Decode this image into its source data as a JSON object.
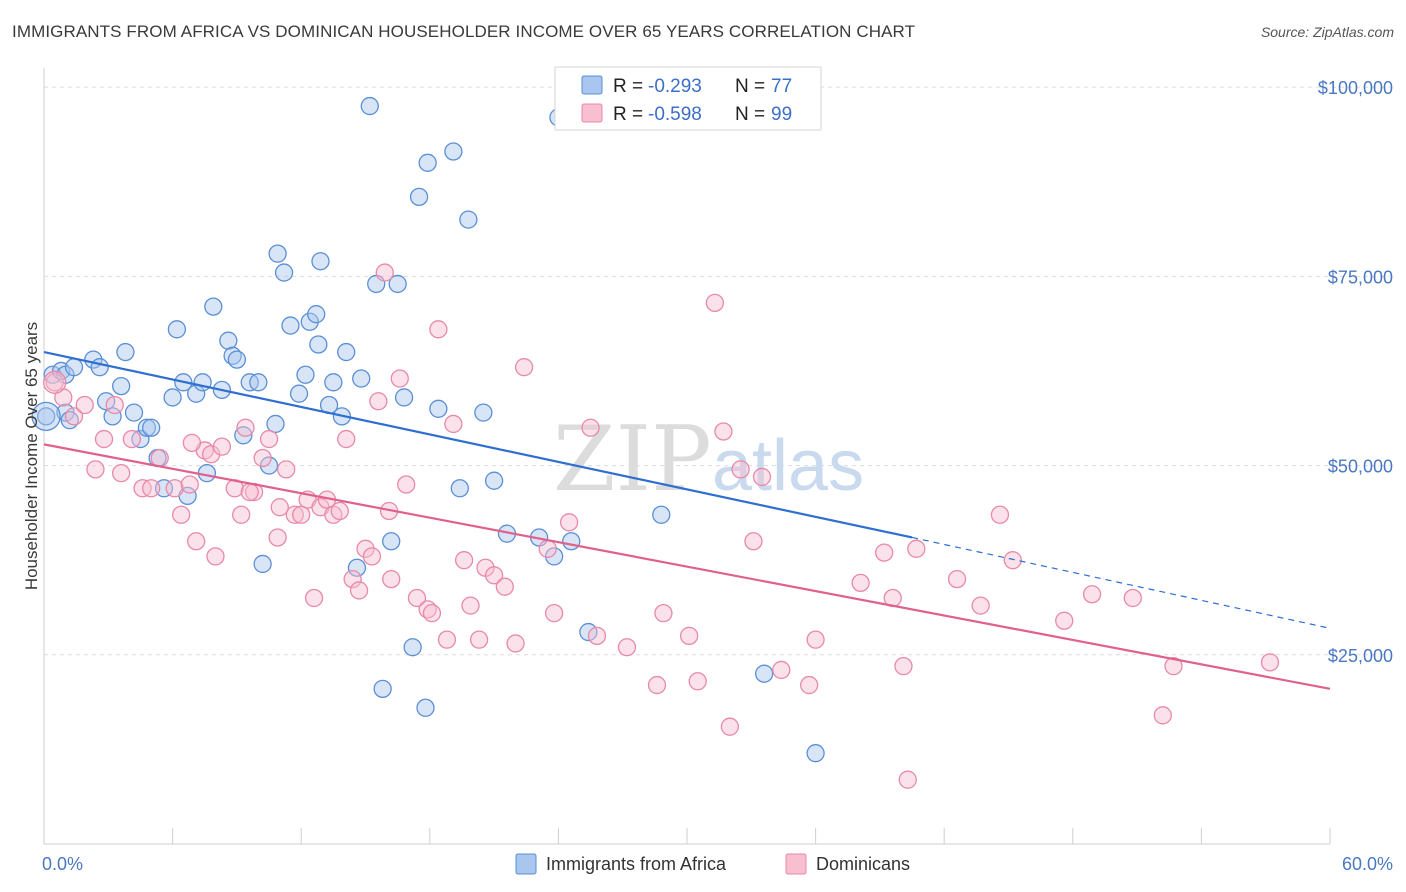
{
  "title": "IMMIGRANTS FROM AFRICA VS DOMINICAN HOUSEHOLDER INCOME OVER 65 YEARS CORRELATION CHART",
  "source": "Source: ZipAtlas.com",
  "watermark": {
    "zip": "ZIP",
    "atlas": "atlas"
  },
  "colors": {
    "blue_fill": "#a9c6ee",
    "blue_stroke": "#5b8fd6",
    "blue_line": "#2f6fcf",
    "pink_fill": "#f7bfd0",
    "pink_stroke": "#e889a9",
    "pink_line": "#e0608e",
    "grid": "#dcdcdc",
    "tick_label": "#4a78c2"
  },
  "legend": {
    "rows": [
      {
        "r_label": "R = ",
        "r_value": "-0.293",
        "n_label": "N = ",
        "n_value": "77"
      },
      {
        "r_label": "R = ",
        "r_value": "-0.598",
        "n_label": "N = ",
        "n_value": "99"
      }
    ]
  },
  "bottom_legend": [
    "Immigrants from Africa",
    "Dominicans"
  ],
  "chart_data": {
    "type": "scatter",
    "title": "IMMIGRANTS FROM AFRICA VS DOMINICAN HOUSEHOLDER INCOME OVER 65 YEARS CORRELATION CHART",
    "xlabel": "",
    "ylabel": "Householder Income Over 65 years",
    "xlim": [
      0,
      60
    ],
    "ylim": [
      0,
      102000
    ],
    "x_tick_labels": [
      "0.0%",
      "60.0%"
    ],
    "y_ticks": [
      25000,
      50000,
      75000,
      100000
    ],
    "y_tick_labels": [
      "$25,000",
      "$50,000",
      "$75,000",
      "$100,000"
    ],
    "grid": true,
    "legend_position": "top-center",
    "series": [
      {
        "name": "Immigrants from Africa",
        "r": -0.293,
        "n": 77,
        "trend": {
          "x0": 0,
          "y0": 65000,
          "x1": 40.5,
          "y1": 40500,
          "dashed_to_x": 60,
          "dashed_to_y": 28500
        },
        "points": [
          [
            0.1,
            56500
          ],
          [
            0.4,
            62000
          ],
          [
            0.8,
            62500
          ],
          [
            1.0,
            62000
          ],
          [
            1.0,
            57000
          ],
          [
            1.2,
            56000
          ],
          [
            1.4,
            63000
          ],
          [
            2.3,
            64000
          ],
          [
            2.6,
            63000
          ],
          [
            2.9,
            58500
          ],
          [
            3.2,
            56500
          ],
          [
            3.6,
            60500
          ],
          [
            3.8,
            65000
          ],
          [
            4.2,
            57000
          ],
          [
            4.5,
            53500
          ],
          [
            4.8,
            55000
          ],
          [
            5.0,
            55000
          ],
          [
            5.3,
            51000
          ],
          [
            5.6,
            47000
          ],
          [
            6.0,
            59000
          ],
          [
            6.2,
            68000
          ],
          [
            6.5,
            61000
          ],
          [
            6.7,
            46000
          ],
          [
            7.1,
            59500
          ],
          [
            7.4,
            61000
          ],
          [
            7.6,
            49000
          ],
          [
            7.9,
            71000
          ],
          [
            8.3,
            60000
          ],
          [
            8.6,
            66500
          ],
          [
            8.8,
            64500
          ],
          [
            9.0,
            64000
          ],
          [
            9.3,
            54000
          ],
          [
            9.6,
            61000
          ],
          [
            10.0,
            61000
          ],
          [
            10.2,
            37000
          ],
          [
            10.5,
            50000
          ],
          [
            10.8,
            55500
          ],
          [
            10.9,
            78000
          ],
          [
            11.2,
            75500
          ],
          [
            11.5,
            68500
          ],
          [
            11.9,
            59500
          ],
          [
            12.2,
            62000
          ],
          [
            12.4,
            69000
          ],
          [
            12.7,
            70000
          ],
          [
            12.9,
            77000
          ],
          [
            13.3,
            58000
          ],
          [
            13.5,
            61000
          ],
          [
            13.9,
            56500
          ],
          [
            14.1,
            65000
          ],
          [
            14.6,
            36500
          ],
          [
            14.8,
            61500
          ],
          [
            15.2,
            97500
          ],
          [
            15.5,
            74000
          ],
          [
            15.8,
            20500
          ],
          [
            16.2,
            40000
          ],
          [
            16.5,
            74000
          ],
          [
            16.8,
            59000
          ],
          [
            17.2,
            26000
          ],
          [
            17.5,
            85500
          ],
          [
            17.8,
            18000
          ],
          [
            17.9,
            90000
          ],
          [
            18.4,
            57500
          ],
          [
            19.1,
            91500
          ],
          [
            19.4,
            47000
          ],
          [
            19.8,
            82500
          ],
          [
            20.5,
            57000
          ],
          [
            21.6,
            41000
          ],
          [
            23.1,
            40500
          ],
          [
            23.8,
            38000
          ],
          [
            24.6,
            40000
          ],
          [
            25.4,
            28000
          ],
          [
            28.8,
            43500
          ],
          [
            33.6,
            22500
          ],
          [
            36.0,
            12000
          ],
          [
            24.0,
            96000
          ],
          [
            12.8,
            66000
          ],
          [
            21.0,
            48000
          ]
        ]
      },
      {
        "name": "Dominicans",
        "r": -0.598,
        "n": 99,
        "trend": {
          "x0": 0,
          "y0": 52800,
          "x1": 60,
          "y1": 20500
        },
        "points": [
          [
            0.5,
            61000
          ],
          [
            0.9,
            59000
          ],
          [
            1.4,
            56500
          ],
          [
            1.9,
            58000
          ],
          [
            2.4,
            49500
          ],
          [
            2.8,
            53500
          ],
          [
            3.3,
            58000
          ],
          [
            3.6,
            49000
          ],
          [
            4.1,
            53500
          ],
          [
            4.6,
            47000
          ],
          [
            5.0,
            47000
          ],
          [
            5.4,
            51000
          ],
          [
            6.1,
            47000
          ],
          [
            6.4,
            43500
          ],
          [
            6.8,
            47500
          ],
          [
            7.1,
            40000
          ],
          [
            7.5,
            52000
          ],
          [
            7.8,
            51500
          ],
          [
            8.0,
            38000
          ],
          [
            8.3,
            52500
          ],
          [
            8.9,
            47000
          ],
          [
            9.2,
            43500
          ],
          [
            9.4,
            55000
          ],
          [
            9.8,
            46500
          ],
          [
            10.2,
            51000
          ],
          [
            10.5,
            53500
          ],
          [
            10.9,
            40500
          ],
          [
            11.3,
            49500
          ],
          [
            11.7,
            43500
          ],
          [
            12.0,
            43500
          ],
          [
            12.3,
            45500
          ],
          [
            12.6,
            32500
          ],
          [
            12.9,
            44500
          ],
          [
            13.2,
            45500
          ],
          [
            13.5,
            43500
          ],
          [
            13.8,
            44000
          ],
          [
            14.1,
            53500
          ],
          [
            14.4,
            35000
          ],
          [
            14.7,
            33500
          ],
          [
            15.0,
            39000
          ],
          [
            15.3,
            38000
          ],
          [
            15.6,
            58500
          ],
          [
            15.9,
            75500
          ],
          [
            16.2,
            35000
          ],
          [
            16.6,
            61500
          ],
          [
            16.9,
            47500
          ],
          [
            17.4,
            32500
          ],
          [
            17.9,
            31000
          ],
          [
            18.1,
            30500
          ],
          [
            18.4,
            68000
          ],
          [
            18.8,
            27000
          ],
          [
            19.1,
            55500
          ],
          [
            19.6,
            37500
          ],
          [
            19.9,
            31500
          ],
          [
            20.3,
            27000
          ],
          [
            20.6,
            36500
          ],
          [
            21.0,
            35500
          ],
          [
            21.5,
            34000
          ],
          [
            22.0,
            26500
          ],
          [
            22.4,
            63000
          ],
          [
            23.5,
            39000
          ],
          [
            23.8,
            30500
          ],
          [
            24.5,
            42500
          ],
          [
            25.5,
            55000
          ],
          [
            25.8,
            27500
          ],
          [
            27.2,
            26000
          ],
          [
            28.6,
            21000
          ],
          [
            28.9,
            30500
          ],
          [
            30.1,
            27500
          ],
          [
            30.5,
            21500
          ],
          [
            31.3,
            71500
          ],
          [
            31.7,
            54500
          ],
          [
            32.0,
            15500
          ],
          [
            32.5,
            49500
          ],
          [
            33.1,
            40000
          ],
          [
            33.5,
            48500
          ],
          [
            34.4,
            23000
          ],
          [
            35.7,
            21000
          ],
          [
            36.0,
            27000
          ],
          [
            38.1,
            34500
          ],
          [
            39.2,
            38500
          ],
          [
            39.6,
            32500
          ],
          [
            40.1,
            23500
          ],
          [
            40.3,
            8500
          ],
          [
            40.7,
            39000
          ],
          [
            42.6,
            35000
          ],
          [
            43.7,
            31500
          ],
          [
            44.6,
            43500
          ],
          [
            45.2,
            37500
          ],
          [
            47.6,
            29500
          ],
          [
            48.9,
            33000
          ],
          [
            50.8,
            32500
          ],
          [
            52.2,
            17000
          ],
          [
            52.7,
            23500
          ],
          [
            57.2,
            24000
          ],
          [
            9.6,
            46500
          ],
          [
            11.0,
            44500
          ],
          [
            16.1,
            44000
          ],
          [
            6.9,
            53000
          ]
        ]
      }
    ]
  }
}
